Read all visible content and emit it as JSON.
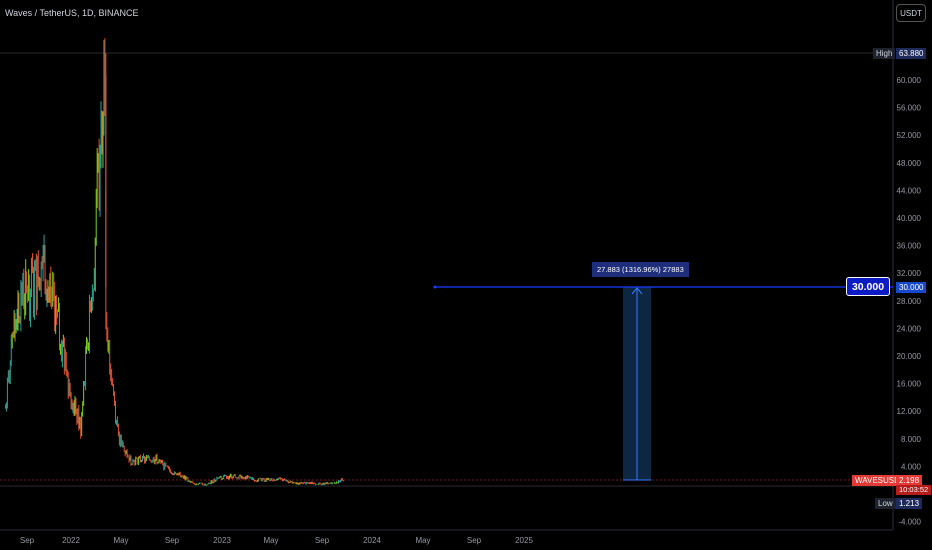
{
  "header": {
    "title": "Waves / TetherUS, 1D, BINANCE",
    "currency": "USDT"
  },
  "colors": {
    "up": "#26a69a",
    "green": "#7ed321",
    "down": "#e0532f",
    "accent": "#1a3cff",
    "axis_text": "#9598a1"
  },
  "price_axis": {
    "ticks": [
      "60.000",
      "56.000",
      "52.000",
      "48.000",
      "44.000",
      "40.000",
      "36.000",
      "32.000",
      "28.000",
      "24.000",
      "20.000",
      "16.000",
      "12.000",
      "8.000",
      "4.000",
      "-4.000"
    ]
  },
  "time_axis": {
    "ticks": [
      "Sep",
      "2022",
      "May",
      "Sep",
      "2023",
      "May",
      "Sep",
      "2024",
      "May",
      "Sep",
      "2025"
    ]
  },
  "markers": {
    "high_label": "High",
    "high_value": "63.880",
    "low_label": "Low",
    "low_value": "1.213",
    "symbol_label": "WAVESUSDT",
    "last_price": "2.198",
    "countdown": "10:03:52",
    "target_label": "30.000",
    "target_big": "30.000"
  },
  "measure": {
    "text": "27.883 (1316.96%) 27883"
  },
  "chart_data": {
    "type": "line",
    "title": "Waves / TetherUS, 1D, BINANCE",
    "xlabel": "",
    "ylabel": "",
    "ylim": [
      -4,
      64
    ],
    "series": [
      {
        "name": "WAVESUSDT",
        "x": [
          "2021-08",
          "2021-09",
          "2021-10",
          "2021-11",
          "2021-12",
          "2022-01",
          "2022-02",
          "2022-03",
          "2022-03-31",
          "2022-04",
          "2022-05",
          "2022-06",
          "2022-07",
          "2022-08",
          "2022-09",
          "2022-10",
          "2022-11",
          "2022-12",
          "2023-01",
          "2023-02",
          "2023-03",
          "2023-04",
          "2023-05",
          "2023-06",
          "2023-07",
          "2023-08",
          "2023-09",
          "2023-10",
          "2023-11"
        ],
        "values": [
          12.5,
          28,
          30,
          33,
          27,
          16,
          9.5,
          33,
          63.88,
          25,
          8,
          4.8,
          5,
          5,
          3.5,
          2.7,
          1.5,
          1.4,
          2.3,
          2.6,
          2.5,
          2.0,
          2.1,
          2.1,
          1.5,
          1.6,
          1.5,
          1.5,
          2.198
        ]
      }
    ],
    "high": 63.88,
    "low": 1.213,
    "last": 2.198,
    "horizontal_line": 30.0,
    "measurement": {
      "from": 2.117,
      "to": 30.0,
      "change": 27.883,
      "percent": 1316.96
    }
  }
}
